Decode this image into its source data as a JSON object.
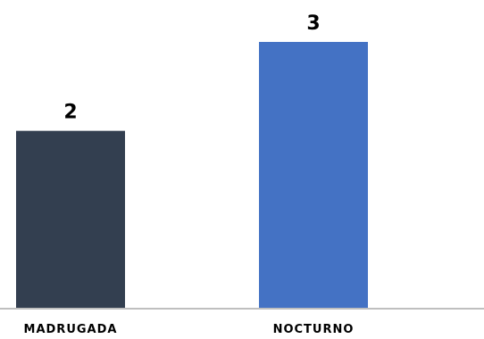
{
  "chart_data": {
    "type": "bar",
    "categories": [
      "MADRUGADA",
      "NOCTURNO"
    ],
    "values": [
      2,
      3
    ],
    "data_labels": [
      "2",
      "3"
    ],
    "colors": [
      "#333f50",
      "#4472c4"
    ],
    "axis_color": "#bfbfbf",
    "ylim": [
      0,
      3
    ],
    "grid": false,
    "legend": "none"
  }
}
